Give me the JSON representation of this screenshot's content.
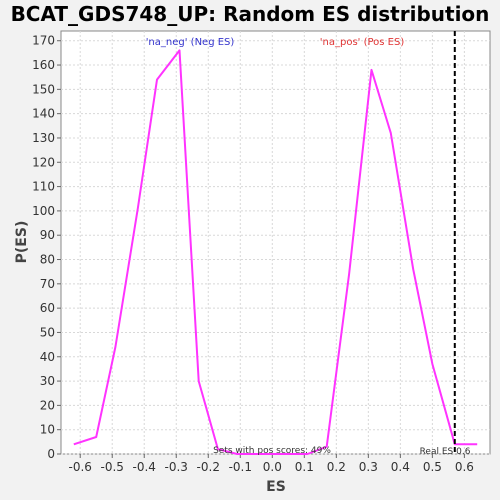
{
  "chart_data": {
    "type": "line",
    "title": "BCAT_GDS748_UP: Random ES distribution",
    "xlabel": "ES",
    "ylabel": "P(ES)",
    "xlim": [
      -0.66,
      0.68
    ],
    "ylim": [
      0,
      174
    ],
    "x_ticks": [
      -0.6,
      -0.5,
      -0.4,
      -0.3,
      -0.2,
      -0.1,
      0.0,
      0.1,
      0.2,
      0.3,
      0.4,
      0.5,
      0.6
    ],
    "x_tick_labels": [
      "-0.6",
      "-0.5",
      "-0.4",
      "-0.3",
      "-0.2",
      "-0.1",
      "0.0",
      "0.1",
      "0.2",
      "0.3",
      "0.4",
      "0.5",
      "0.6"
    ],
    "y_ticks": [
      0,
      10,
      20,
      30,
      40,
      50,
      60,
      70,
      80,
      90,
      100,
      110,
      120,
      130,
      140,
      150,
      160,
      170
    ],
    "y_tick_labels": [
      "0",
      "10",
      "20",
      "30",
      "40",
      "50",
      "60",
      "70",
      "80",
      "90",
      "100",
      "110",
      "120",
      "130",
      "140",
      "150",
      "160",
      "170"
    ],
    "grid": true,
    "series_color": "#ff33ff",
    "series": [
      {
        "x": [
          -0.62,
          -0.55,
          -0.49,
          -0.42,
          -0.36,
          -0.29,
          -0.23,
          -0.17,
          -0.11,
          0.11,
          0.17,
          0.24,
          0.31,
          0.37,
          0.44,
          0.5,
          0.57,
          0.64
        ],
        "values": [
          4,
          7,
          44,
          101,
          154,
          166,
          30,
          2,
          0,
          0,
          3,
          74,
          158,
          132,
          76,
          37,
          4,
          4
        ]
      }
    ],
    "real_es": {
      "x": 0.57,
      "label": "Real ES 0.6"
    },
    "annotations": {
      "neg_label": "'na_neg' (Neg ES)",
      "neg_color": "#3333cc",
      "pos_label": "'na_pos' (Pos ES)",
      "pos_color": "#e03333",
      "pos_scores": "Sets with pos scores: 49%"
    }
  }
}
